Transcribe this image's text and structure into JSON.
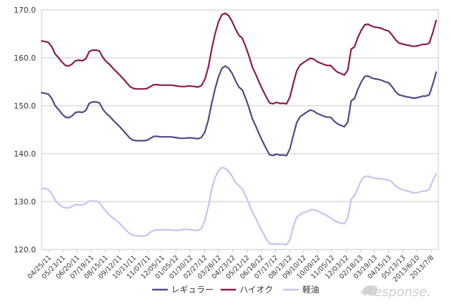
{
  "chart_data": {
    "type": "line",
    "title": "",
    "xlabel": "",
    "ylabel": "",
    "ylim": [
      120,
      170
    ],
    "yticks": [
      "120.0",
      "130.0",
      "140.0",
      "150.0",
      "160.0",
      "170.0"
    ],
    "grid": "horizontal",
    "legend_position": "bottom",
    "x_tick_labels": [
      "04/25/11",
      "05/23/11",
      "06/20/11",
      "07/19/11",
      "08/15/11",
      "09/12/11",
      "10/11/11",
      "11/07/11",
      "12/05/11",
      "01/05/12",
      "01/30/12",
      "02/27/12",
      "03/26/12",
      "04/23/12",
      "05/21/12",
      "06/18/12",
      "07/17/12",
      "08/13/12",
      "09/10/12",
      "10/09/12",
      "11/05/12",
      "12/03/12",
      "02/18/13",
      "03/19/13",
      "04/15/13",
      "05/13/13",
      "2013/6/10",
      "2013/7/8"
    ],
    "series": [
      {
        "name": "レギュラー",
        "color": "#4a4a8a",
        "values": [
          152.7,
          152.6,
          152.4,
          151.5,
          150.0,
          149.2,
          148.3,
          147.6,
          147.5,
          147.9,
          148.6,
          148.7,
          148.6,
          149.0,
          150.5,
          150.8,
          150.8,
          150.6,
          149.3,
          148.4,
          147.8,
          147.0,
          146.3,
          145.6,
          144.8,
          144.0,
          143.2,
          142.8,
          142.7,
          142.7,
          142.7,
          142.8,
          143.2,
          143.6,
          143.6,
          143.5,
          143.5,
          143.5,
          143.5,
          143.4,
          143.3,
          143.2,
          143.2,
          143.3,
          143.3,
          143.2,
          143.1,
          143.4,
          144.5,
          147.0,
          150.5,
          153.5,
          156.0,
          157.8,
          158.3,
          157.8,
          156.8,
          155.2,
          153.9,
          153.3,
          151.5,
          149.5,
          147.2,
          145.7,
          144.0,
          142.5,
          141.1,
          139.8,
          139.6,
          139.9,
          139.7,
          139.7,
          139.6,
          141.0,
          143.8,
          146.5,
          147.7,
          148.2,
          148.7,
          149.1,
          148.9,
          148.4,
          148.1,
          147.8,
          147.6,
          147.6,
          146.8,
          146.2,
          145.9,
          145.6,
          146.6,
          151.0,
          151.5,
          153.5,
          155.0,
          156.1,
          156.2,
          155.8,
          155.6,
          155.5,
          155.3,
          155.0,
          154.8,
          154.0,
          153.0,
          152.3,
          152.1,
          151.9,
          151.8,
          151.6,
          151.6,
          151.8,
          152.0,
          152.0,
          152.3,
          154.5,
          157.0
        ]
      },
      {
        "name": "ハイオク",
        "color": "#8b1a4a",
        "values": [
          163.5,
          163.4,
          163.2,
          162.3,
          160.8,
          160.0,
          159.1,
          158.4,
          158.3,
          158.7,
          159.4,
          159.5,
          159.4,
          159.8,
          161.3,
          161.6,
          161.6,
          161.4,
          160.1,
          159.2,
          158.6,
          157.8,
          157.1,
          156.4,
          155.6,
          154.8,
          154.0,
          153.6,
          153.5,
          153.5,
          153.5,
          153.6,
          154.0,
          154.4,
          154.4,
          154.3,
          154.3,
          154.3,
          154.3,
          154.2,
          154.1,
          154.0,
          154.0,
          154.1,
          154.1,
          154.0,
          153.9,
          154.2,
          155.5,
          158.0,
          161.8,
          165.0,
          167.5,
          169.0,
          169.3,
          168.8,
          167.6,
          166.0,
          164.7,
          164.1,
          162.3,
          160.3,
          158.0,
          156.5,
          154.8,
          153.3,
          151.9,
          150.6,
          150.4,
          150.7,
          150.5,
          150.5,
          150.4,
          151.8,
          154.6,
          157.3,
          158.5,
          159.0,
          159.5,
          159.9,
          159.7,
          159.2,
          158.9,
          158.6,
          158.4,
          158.4,
          157.6,
          157.0,
          156.7,
          156.4,
          157.4,
          161.8,
          162.3,
          164.3,
          165.8,
          166.9,
          167.0,
          166.6,
          166.4,
          166.3,
          166.1,
          165.8,
          165.6,
          164.8,
          163.8,
          163.1,
          162.9,
          162.7,
          162.6,
          162.4,
          162.4,
          162.6,
          162.8,
          162.8,
          163.1,
          165.3,
          167.8
        ]
      },
      {
        "name": "軽油",
        "color": "#c4c4f0",
        "values": [
          132.6,
          132.8,
          132.5,
          131.6,
          130.3,
          129.5,
          128.9,
          128.7,
          128.7,
          129.0,
          129.4,
          129.3,
          129.3,
          129.6,
          130.1,
          130.1,
          130.1,
          129.8,
          128.8,
          127.9,
          127.1,
          126.6,
          126.0,
          125.4,
          124.7,
          123.9,
          123.3,
          122.9,
          122.9,
          122.8,
          122.8,
          123.0,
          123.6,
          124.0,
          124.1,
          124.1,
          124.1,
          124.1,
          124.1,
          124.0,
          124.0,
          124.1,
          124.2,
          124.2,
          124.1,
          124.0,
          124.0,
          124.4,
          126.0,
          129.0,
          132.5,
          135.0,
          136.4,
          137.1,
          136.9,
          136.3,
          135.3,
          134.0,
          133.3,
          132.6,
          131.2,
          129.5,
          127.7,
          126.5,
          124.9,
          123.6,
          122.2,
          121.3,
          121.1,
          121.2,
          121.1,
          121.1,
          121.0,
          122.0,
          124.8,
          126.8,
          127.3,
          127.7,
          127.9,
          128.3,
          128.3,
          128.1,
          127.7,
          127.4,
          127.0,
          126.6,
          126.1,
          125.7,
          125.5,
          125.4,
          126.5,
          130.5,
          131.2,
          132.9,
          134.5,
          135.2,
          135.3,
          135.0,
          134.9,
          134.8,
          134.7,
          134.6,
          134.5,
          134.1,
          133.3,
          132.8,
          132.5,
          132.3,
          132.1,
          131.9,
          131.8,
          132.0,
          132.2,
          132.2,
          132.6,
          134.4,
          135.8
        ]
      }
    ]
  },
  "watermark": {
    "text": "esponse.",
    "logo_letter": "R"
  }
}
